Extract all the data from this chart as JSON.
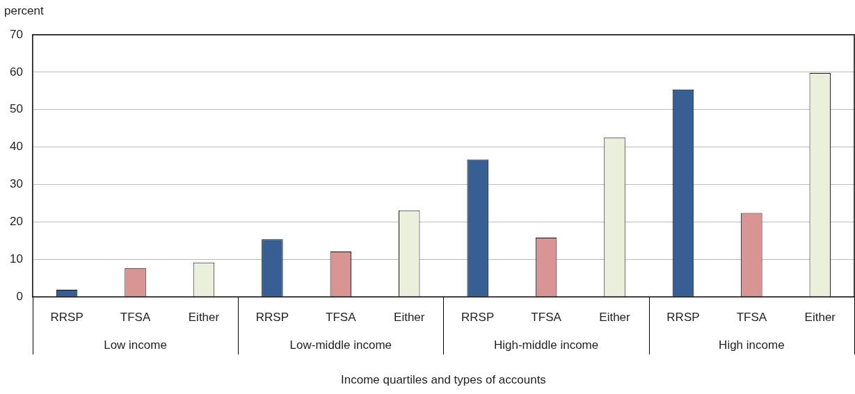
{
  "chart_data": {
    "type": "bar",
    "ylabel": "percent",
    "xlabel": "Income quartiles and types of accounts",
    "categories": [
      "RRSP",
      "TFSA",
      "Either",
      "RRSP",
      "TFSA",
      "Either",
      "RRSP",
      "TFSA",
      "Either",
      "RRSP",
      "TFSA",
      "Either"
    ],
    "values": [
      1.9,
      7.7,
      9.2,
      15.4,
      12.1,
      23.1,
      36.7,
      15.8,
      42.6,
      55.4,
      22.4,
      59.8
    ],
    "colors": [
      "#375f93",
      "#d99594",
      "#ebf0dc",
      "#375f93",
      "#d99594",
      "#ebf0dc",
      "#375f93",
      "#d99594",
      "#ebf0dc",
      "#375f93",
      "#d99594",
      "#ebf0dc"
    ],
    "annotations": [
      "Low income",
      "Low-middle income",
      "High-middle income",
      "High income"
    ],
    "ylim": [
      0,
      70
    ],
    "yticks": [
      0,
      10,
      20,
      30,
      40,
      50,
      60,
      70
    ],
    "grid": "y",
    "legend": false
  }
}
